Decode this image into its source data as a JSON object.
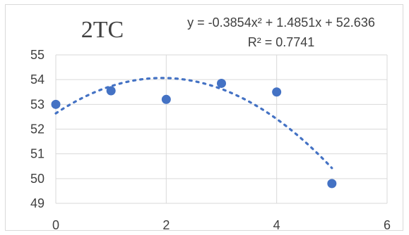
{
  "chart_data": {
    "type": "scatter",
    "title": "2TC",
    "xlabel": "",
    "ylabel": "",
    "xlim": [
      0,
      6
    ],
    "ylim": [
      49,
      55
    ],
    "xticks": [
      0,
      2,
      4,
      6
    ],
    "yticks": [
      49,
      50,
      51,
      52,
      53,
      54,
      55
    ],
    "grid": "horizontal",
    "legend": "none",
    "series": [
      {
        "x": [
          0,
          1,
          2,
          3,
          4,
          5
        ],
        "y": [
          53.0,
          53.55,
          53.2,
          53.85,
          53.5,
          49.8
        ],
        "color": "#4472C4"
      }
    ],
    "trendline": {
      "kind": "polynomial",
      "order": 2,
      "coefficients": [
        -0.3854,
        1.4851,
        52.636
      ],
      "x_range": [
        0,
        5
      ],
      "style": "dotted",
      "color": "#4472C4"
    },
    "annotations": {
      "equation": "y = -0.3854x² + 1.4851x + 52.636",
      "r_squared": "R² = 0.7741"
    }
  }
}
